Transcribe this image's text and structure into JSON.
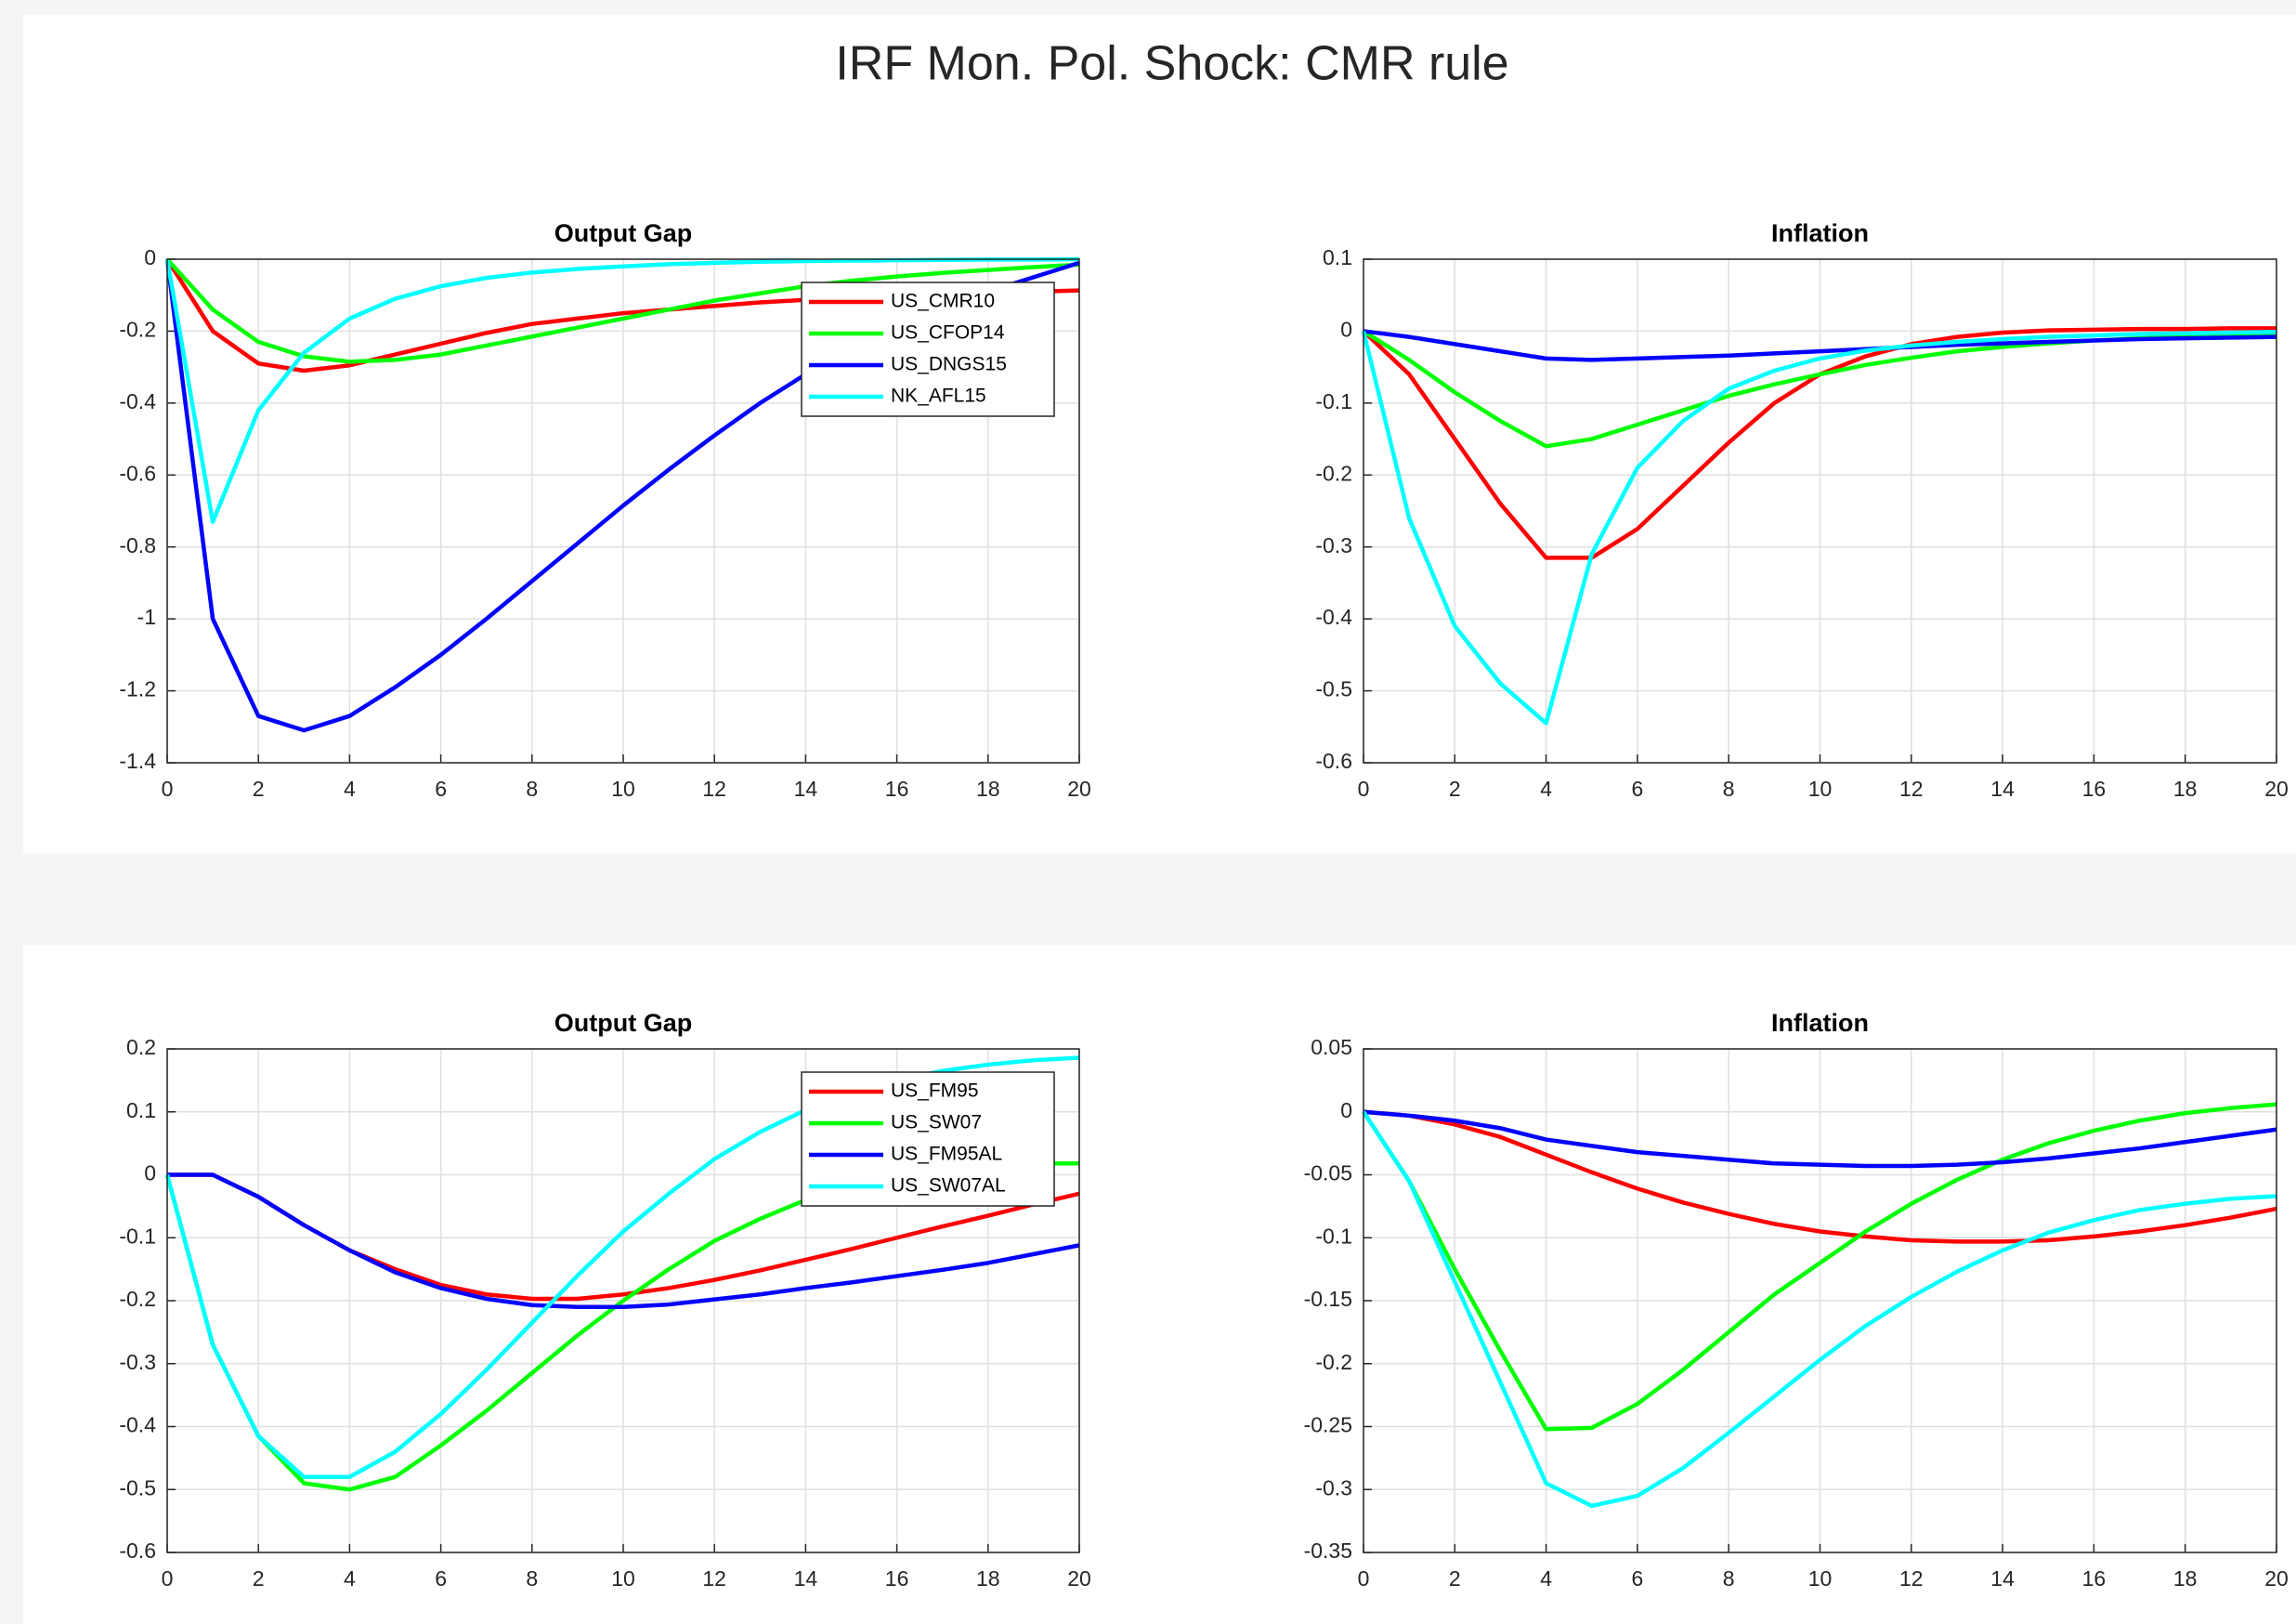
{
  "suptitle": "IRF Mon. Pol. Shock: CMR rule",
  "chart_data": [
    {
      "type": "line",
      "title": "Output Gap",
      "legend": "northeast",
      "grid": true,
      "x": [
        0,
        1,
        2,
        3,
        4,
        5,
        6,
        7,
        8,
        9,
        10,
        11,
        12,
        13,
        14,
        15,
        16,
        17,
        18,
        19,
        20
      ],
      "xlim": [
        0,
        20
      ],
      "xticks": [
        0,
        2,
        4,
        6,
        8,
        10,
        12,
        14,
        16,
        18,
        20
      ],
      "ylim": [
        -1.4,
        0
      ],
      "yticks": [
        0,
        -0.2,
        -0.4,
        -0.6,
        -0.8,
        -1,
        -1.2,
        -1.4
      ],
      "series": [
        {
          "name": "US_CMR10",
          "color": "#ff0000",
          "values": [
            0,
            -0.2,
            -0.29,
            -0.31,
            -0.295,
            -0.265,
            -0.235,
            -0.205,
            -0.18,
            -0.165,
            -0.15,
            -0.14,
            -0.13,
            -0.12,
            -0.113,
            -0.108,
            -0.103,
            -0.098,
            -0.094,
            -0.09,
            -0.087
          ]
        },
        {
          "name": "US_CFOP14",
          "color": "#00ff00",
          "values": [
            0,
            -0.14,
            -0.23,
            -0.27,
            -0.285,
            -0.28,
            -0.265,
            -0.24,
            -0.215,
            -0.19,
            -0.165,
            -0.14,
            -0.115,
            -0.095,
            -0.075,
            -0.06,
            -0.048,
            -0.038,
            -0.03,
            -0.022,
            -0.015
          ]
        },
        {
          "name": "US_DNGS15",
          "color": "#0000ff",
          "values": [
            0,
            -1.0,
            -1.27,
            -1.31,
            -1.27,
            -1.19,
            -1.1,
            -1.0,
            -0.895,
            -0.79,
            -0.685,
            -0.585,
            -0.49,
            -0.4,
            -0.32,
            -0.25,
            -0.19,
            -0.135,
            -0.09,
            -0.05,
            -0.01
          ]
        },
        {
          "name": "NK_AFL15",
          "color": "#00ffff",
          "values": [
            0,
            -0.73,
            -0.42,
            -0.26,
            -0.165,
            -0.11,
            -0.075,
            -0.052,
            -0.037,
            -0.027,
            -0.02,
            -0.014,
            -0.01,
            -0.007,
            -0.005,
            -0.004,
            -0.003,
            -0.002,
            -0.001,
            -0.001,
            0
          ]
        }
      ]
    },
    {
      "type": "line",
      "title": "Inflation",
      "grid": true,
      "x": [
        0,
        1,
        2,
        3,
        4,
        5,
        6,
        7,
        8,
        9,
        10,
        11,
        12,
        13,
        14,
        15,
        16,
        17,
        18,
        19,
        20
      ],
      "xlim": [
        0,
        20
      ],
      "xticks": [
        0,
        2,
        4,
        6,
        8,
        10,
        12,
        14,
        16,
        18,
        20
      ],
      "ylim": [
        -0.6,
        0.1
      ],
      "yticks": [
        0.1,
        0,
        -0.1,
        -0.2,
        -0.3,
        -0.4,
        -0.5,
        -0.6
      ],
      "series": [
        {
          "color": "#ff0000",
          "values": [
            0,
            -0.06,
            -0.15,
            -0.24,
            -0.315,
            -0.315,
            -0.275,
            -0.215,
            -0.155,
            -0.1,
            -0.06,
            -0.035,
            -0.018,
            -0.008,
            -0.002,
            0.001,
            0.002,
            0.003,
            0.003,
            0.004,
            0.004
          ]
        },
        {
          "color": "#00ff00",
          "values": [
            0,
            -0.04,
            -0.085,
            -0.125,
            -0.16,
            -0.15,
            -0.13,
            -0.11,
            -0.09,
            -0.074,
            -0.06,
            -0.047,
            -0.037,
            -0.028,
            -0.022,
            -0.017,
            -0.013,
            -0.01,
            -0.008,
            -0.006,
            -0.005
          ]
        },
        {
          "color": "#0000ff",
          "values": [
            0,
            -0.008,
            -0.018,
            -0.028,
            -0.038,
            -0.04,
            -0.038,
            -0.036,
            -0.034,
            -0.031,
            -0.028,
            -0.025,
            -0.022,
            -0.019,
            -0.017,
            -0.015,
            -0.013,
            -0.011,
            -0.01,
            -0.009,
            -0.008
          ]
        },
        {
          "color": "#00ffff",
          "values": [
            0,
            -0.26,
            -0.41,
            -0.49,
            -0.545,
            -0.31,
            -0.19,
            -0.125,
            -0.08,
            -0.055,
            -0.038,
            -0.027,
            -0.02,
            -0.015,
            -0.011,
            -0.008,
            -0.006,
            -0.004,
            -0.003,
            -0.002,
            -0.001
          ]
        }
      ]
    },
    {
      "type": "line",
      "title": "Output Gap",
      "legend": "northeast",
      "grid": true,
      "x": [
        0,
        1,
        2,
        3,
        4,
        5,
        6,
        7,
        8,
        9,
        10,
        11,
        12,
        13,
        14,
        15,
        16,
        17,
        18,
        19,
        20
      ],
      "xlim": [
        0,
        20
      ],
      "xticks": [
        0,
        2,
        4,
        6,
        8,
        10,
        12,
        14,
        16,
        18,
        20
      ],
      "ylim": [
        -0.6,
        0.2
      ],
      "yticks": [
        0.2,
        0.1,
        0,
        -0.1,
        -0.2,
        -0.3,
        -0.4,
        -0.5,
        -0.6
      ],
      "series": [
        {
          "name": "US_FM95",
          "color": "#ff0000",
          "values": [
            0,
            0,
            -0.035,
            -0.08,
            -0.12,
            -0.15,
            -0.175,
            -0.19,
            -0.197,
            -0.197,
            -0.19,
            -0.18,
            -0.167,
            -0.152,
            -0.135,
            -0.118,
            -0.1,
            -0.082,
            -0.065,
            -0.047,
            -0.03
          ]
        },
        {
          "name": "US_SW07",
          "color": "#00ff00",
          "values": [
            0,
            -0.27,
            -0.415,
            -0.49,
            -0.5,
            -0.48,
            -0.43,
            -0.375,
            -0.315,
            -0.255,
            -0.2,
            -0.15,
            -0.105,
            -0.07,
            -0.04,
            -0.018,
            -0.002,
            0.008,
            0.015,
            0.018,
            0.018
          ]
        },
        {
          "name": "US_FM95AL",
          "color": "#0000ff",
          "values": [
            0,
            0,
            -0.035,
            -0.08,
            -0.12,
            -0.155,
            -0.18,
            -0.197,
            -0.207,
            -0.21,
            -0.21,
            -0.206,
            -0.198,
            -0.19,
            -0.18,
            -0.171,
            -0.161,
            -0.151,
            -0.14,
            -0.126,
            -0.112
          ]
        },
        {
          "name": "US_SW07AL",
          "color": "#00ffff",
          "values": [
            0,
            -0.27,
            -0.415,
            -0.48,
            -0.48,
            -0.44,
            -0.38,
            -0.31,
            -0.235,
            -0.16,
            -0.09,
            -0.03,
            0.025,
            0.068,
            0.103,
            0.13,
            0.15,
            0.165,
            0.175,
            0.182,
            0.186
          ]
        }
      ]
    },
    {
      "type": "line",
      "title": "Inflation",
      "grid": true,
      "x": [
        0,
        1,
        2,
        3,
        4,
        5,
        6,
        7,
        8,
        9,
        10,
        11,
        12,
        13,
        14,
        15,
        16,
        17,
        18,
        19,
        20
      ],
      "xlim": [
        0,
        20
      ],
      "xticks": [
        0,
        2,
        4,
        6,
        8,
        10,
        12,
        14,
        16,
        18,
        20
      ],
      "ylim": [
        -0.35,
        0.05
      ],
      "yticks": [
        0.05,
        0,
        -0.05,
        -0.1,
        -0.15,
        -0.2,
        -0.25,
        -0.3,
        -0.35
      ],
      "series": [
        {
          "color": "#ff0000",
          "values": [
            0,
            -0.003,
            -0.01,
            -0.02,
            -0.034,
            -0.048,
            -0.061,
            -0.072,
            -0.081,
            -0.089,
            -0.095,
            -0.099,
            -0.102,
            -0.103,
            -0.103,
            -0.102,
            -0.099,
            -0.095,
            -0.09,
            -0.084,
            -0.077
          ]
        },
        {
          "color": "#00ff00",
          "values": [
            0,
            -0.055,
            -0.125,
            -0.19,
            -0.252,
            -0.251,
            -0.232,
            -0.205,
            -0.175,
            -0.145,
            -0.12,
            -0.095,
            -0.073,
            -0.054,
            -0.038,
            -0.025,
            -0.015,
            -0.007,
            -0.001,
            0.003,
            0.006
          ]
        },
        {
          "color": "#0000ff",
          "values": [
            0,
            -0.003,
            -0.007,
            -0.013,
            -0.022,
            -0.027,
            -0.032,
            -0.035,
            -0.038,
            -0.041,
            -0.042,
            -0.043,
            -0.043,
            -0.042,
            -0.04,
            -0.037,
            -0.033,
            -0.029,
            -0.024,
            -0.019,
            -0.014
          ]
        },
        {
          "color": "#00ffff",
          "values": [
            0,
            -0.055,
            -0.135,
            -0.215,
            -0.295,
            -0.313,
            -0.305,
            -0.283,
            -0.255,
            -0.226,
            -0.197,
            -0.17,
            -0.147,
            -0.127,
            -0.11,
            -0.096,
            -0.086,
            -0.078,
            -0.073,
            -0.069,
            -0.067
          ]
        }
      ]
    }
  ]
}
